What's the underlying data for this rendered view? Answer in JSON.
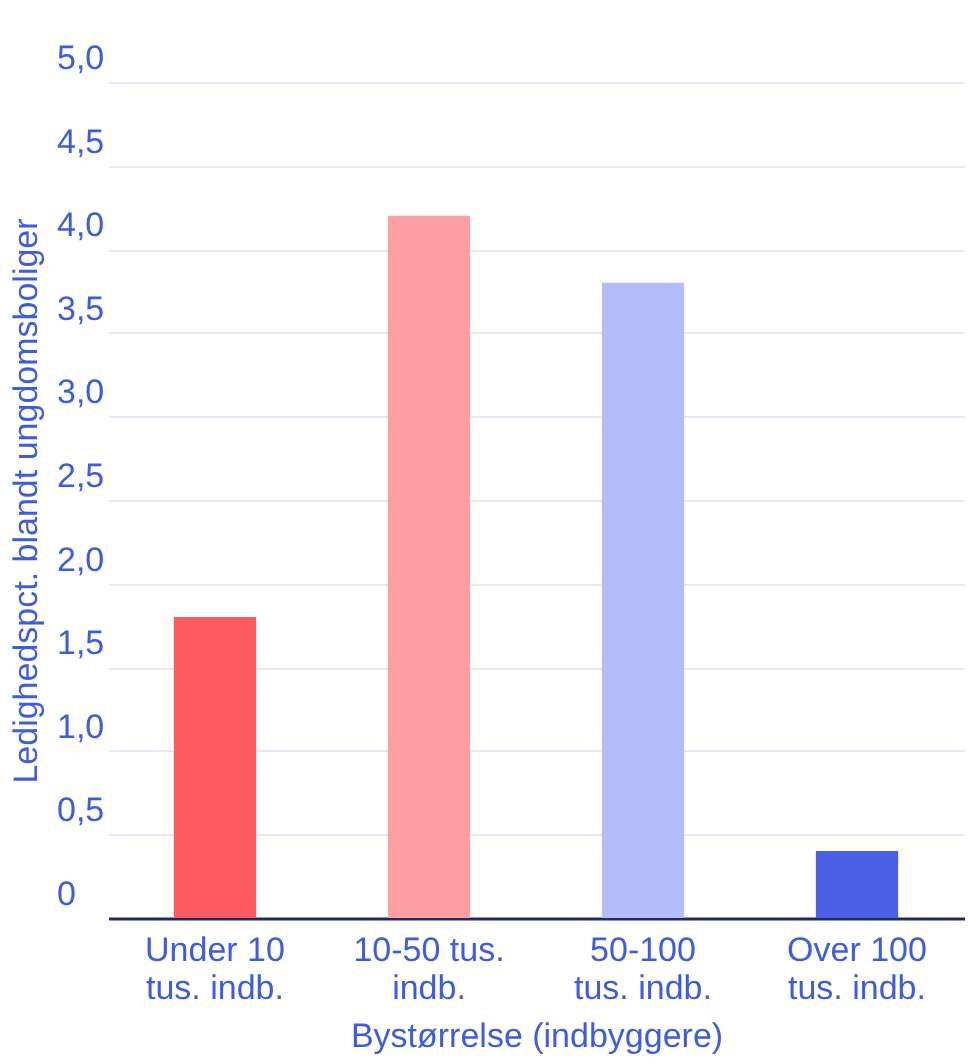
{
  "chart_data": {
    "type": "bar",
    "xlabel": "Bystørrelse (indbyggere)",
    "ylabel": "Ledighedspct. blandt ungdomsboliger",
    "categories": [
      "Under 10\ntus. indb.",
      "10-50 tus.\nindb.",
      "50-100\ntus. indb.",
      "Over 100\ntus. indb."
    ],
    "values": [
      1.8,
      4.2,
      3.8,
      0.4
    ],
    "colors": [
      "#ff5a5f",
      "#ff9fa3",
      "#b3bdf8",
      "#4a5ee8"
    ],
    "ylim": [
      0,
      5
    ],
    "yticks": [
      0,
      {
        "value": 0.5,
        "label": "0,5"
      },
      {
        "value": 1,
        "label": "1,0"
      },
      {
        "value": 1.5,
        "label": "1,5"
      },
      {
        "value": 2,
        "label": "2,0"
      },
      {
        "value": 2.5,
        "label": "2,5"
      },
      {
        "value": 3,
        "label": "3,0"
      },
      {
        "value": 3.5,
        "label": "3,5"
      },
      {
        "value": 4,
        "label": "4,0"
      },
      {
        "value": 4.5,
        "label": "4,5"
      },
      {
        "value": 5,
        "label": "5,0"
      }
    ],
    "grid": "y"
  }
}
